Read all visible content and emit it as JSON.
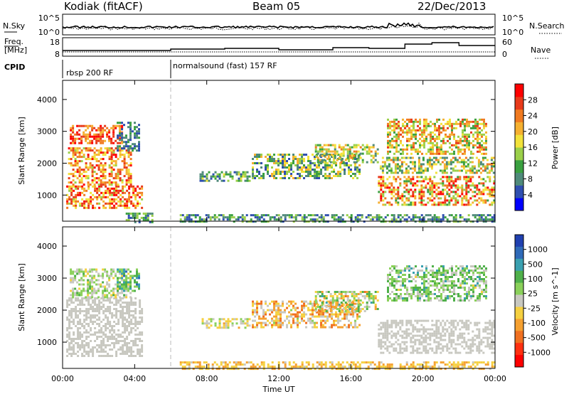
{
  "header": {
    "station": "Kodiak (fitACF)",
    "beam": "Beam 05",
    "date": "22/Dec/2013"
  },
  "nsky_panel": {
    "left_label": "N.Sky",
    "right_label": "N.Search",
    "left_ticks": [
      "10^5",
      "10^0"
    ],
    "right_ticks": [
      "10^5",
      "10^0"
    ]
  },
  "freq_panel": {
    "left_label_line1": "Freq.",
    "left_label_line2": "[MHz]",
    "left_ticks": [
      "18",
      "8"
    ],
    "right_label": "Nave",
    "right_ticks": [
      "60",
      "0"
    ]
  },
  "cpid": {
    "label": "CPID",
    "segments": [
      {
        "name": "rbsp 200 RF",
        "start_h": 0.0,
        "end_h": 6.0
      },
      {
        "name": "normalsound (fast) 157 RF",
        "start_h": 6.0,
        "end_h": 24.0
      }
    ]
  },
  "range_axis": {
    "label": "Slant Range [km]",
    "ticks": [
      "1000",
      "2000",
      "3000",
      "4000"
    ],
    "tick_values": [
      1000,
      2000,
      3000,
      4000
    ],
    "range": [
      180,
      4600
    ]
  },
  "time_axis": {
    "label": "Time UT",
    "ticks": [
      "00:00",
      "04:00",
      "08:00",
      "12:00",
      "16:00",
      "20:00",
      "00:00"
    ],
    "tick_hours": [
      0,
      4,
      8,
      12,
      16,
      20,
      24
    ],
    "range_hours": [
      0,
      24
    ]
  },
  "power_colorbar": {
    "label": "Power [dB]",
    "ticks": [
      "4",
      "8",
      "12",
      "16",
      "20",
      "24",
      "28"
    ],
    "colors": [
      "#0000ff",
      "#2f4fb0",
      "#4f8a7a",
      "#3aa040",
      "#9bd04a",
      "#f2e23a",
      "#f5b030",
      "#f07a20",
      "#e83a1a",
      "#ff0000"
    ]
  },
  "velocity_colorbar": {
    "label": "Velocity [m s^-1]",
    "ticks": [
      "1000",
      "500",
      "100",
      "25",
      "-25",
      "-100",
      "-500",
      "-1000"
    ],
    "colors": [
      "#2040b0",
      "#2f6ab8",
      "#3aa0b0",
      "#4fb04a",
      "#8ad05a",
      "#c8c8c0",
      "#f5d040",
      "#f5a030",
      "#f07020",
      "#ff3010",
      "#ff0000"
    ]
  },
  "chart_data": {
    "type": "heatmap",
    "title": "Kodiak (fitACF)  Beam 05  22/Dec/2013",
    "xlabel": "Time UT",
    "ylabel": "Slant Range [km]",
    "xlim_hours": [
      0,
      24
    ],
    "ylim_km": [
      180,
      4600
    ],
    "panels": [
      {
        "name": "Power",
        "units": "dB",
        "clim": [
          0,
          30
        ],
        "regions": [
          {
            "t0": 0.2,
            "t1": 4.4,
            "r0": 600,
            "r1": 1300,
            "v0": 14,
            "v1": 30
          },
          {
            "t0": 0.3,
            "t1": 3.8,
            "r0": 1300,
            "r1": 2500,
            "v0": 14,
            "v1": 28
          },
          {
            "t0": 0.4,
            "t1": 3.3,
            "r0": 2600,
            "r1": 3200,
            "v0": 18,
            "v1": 30
          },
          {
            "t0": 3.0,
            "t1": 4.2,
            "r0": 2400,
            "r1": 3300,
            "v0": 4,
            "v1": 10
          },
          {
            "t0": 3.5,
            "t1": 5.0,
            "r0": 180,
            "r1": 450,
            "v0": 4,
            "v1": 14
          },
          {
            "t0": 6.5,
            "t1": 24.0,
            "r0": 180,
            "r1": 400,
            "v0": 3,
            "v1": 14
          },
          {
            "t0": 7.6,
            "t1": 10.4,
            "r0": 1450,
            "r1": 1750,
            "v0": 4,
            "v1": 16
          },
          {
            "t0": 10.5,
            "t1": 16.5,
            "r0": 1500,
            "r1": 2300,
            "v0": 4,
            "v1": 20
          },
          {
            "t0": 14.0,
            "t1": 17.5,
            "r0": 2000,
            "r1": 2600,
            "v0": 6,
            "v1": 22
          },
          {
            "t0": 17.5,
            "t1": 23.9,
            "r0": 700,
            "r1": 1600,
            "v0": 10,
            "v1": 30
          },
          {
            "t0": 17.6,
            "t1": 23.9,
            "r0": 1700,
            "r1": 2200,
            "v0": 6,
            "v1": 22
          },
          {
            "t0": 18.0,
            "t1": 23.5,
            "r0": 2300,
            "r1": 3400,
            "v0": 10,
            "v1": 26
          }
        ]
      },
      {
        "name": "Velocity",
        "units": "m s^-1",
        "clim": [
          -1000,
          1000
        ],
        "regions": [
          {
            "t0": 0.2,
            "t1": 4.4,
            "r0": 600,
            "r1": 2400,
            "v0": -25,
            "v1": 25
          },
          {
            "t0": 0.4,
            "t1": 3.8,
            "r0": 2400,
            "r1": 3300,
            "v0": -150,
            "v1": 300
          },
          {
            "t0": 3.0,
            "t1": 4.2,
            "r0": 2600,
            "r1": 3300,
            "v0": 100,
            "v1": 700
          },
          {
            "t0": 6.5,
            "t1": 24.0,
            "r0": 180,
            "r1": 400,
            "v0": -400,
            "v1": -50
          },
          {
            "t0": 7.6,
            "t1": 10.4,
            "r0": 1450,
            "r1": 1750,
            "v0": -300,
            "v1": 200
          },
          {
            "t0": 10.5,
            "t1": 16.5,
            "r0": 1500,
            "r1": 2300,
            "v0": -600,
            "v1": 100
          },
          {
            "t0": 14.0,
            "t1": 17.5,
            "r0": 2000,
            "r1": 2600,
            "v0": -500,
            "v1": 500
          },
          {
            "t0": 17.5,
            "t1": 23.9,
            "r0": 700,
            "r1": 1700,
            "v0": -25,
            "v1": 25
          },
          {
            "t0": 18.0,
            "t1": 23.5,
            "r0": 2300,
            "r1": 3400,
            "v0": -100,
            "v1": 500
          }
        ]
      }
    ]
  }
}
